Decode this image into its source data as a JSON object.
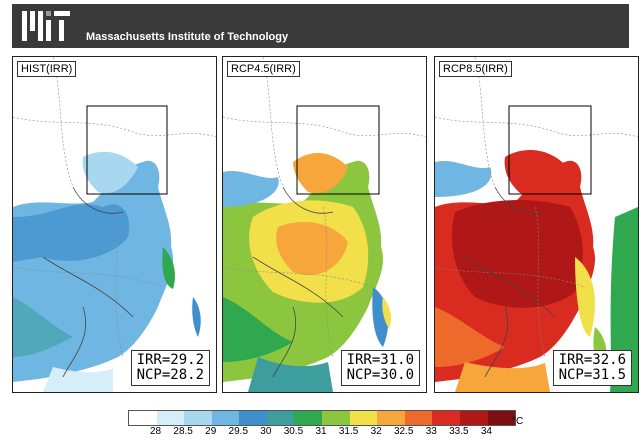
{
  "header": {
    "institution": "Massachusetts Institute of Technology",
    "bg_color": "#3a3a3a"
  },
  "panels": [
    {
      "title": "HIST(IRR)",
      "irr": "IRR=29.2",
      "ncp": "NCP=28.2"
    },
    {
      "title": "RCP4.5(IRR)",
      "irr": "IRR=31.0",
      "ncp": "NCP=30.0"
    },
    {
      "title": "RCP8.5(IRR)",
      "irr": "IRR=32.6",
      "ncp": "NCP=31.5"
    }
  ],
  "legend": {
    "unit": "°C",
    "ticks": [
      "28",
      "28.5",
      "29",
      "29.5",
      "30",
      "30.5",
      "31",
      "31.5",
      "32",
      "32.5",
      "33",
      "33.5",
      "34"
    ],
    "colors": [
      "#ffffff",
      "#d6eef8",
      "#a8d7f0",
      "#6fb6e3",
      "#3f8fcc",
      "#3e9e9e",
      "#2fa84f",
      "#8cc63f",
      "#f2e04b",
      "#f6a63a",
      "#ee6a2a",
      "#d92b1f",
      "#b01717",
      "#7d0f12"
    ]
  }
}
